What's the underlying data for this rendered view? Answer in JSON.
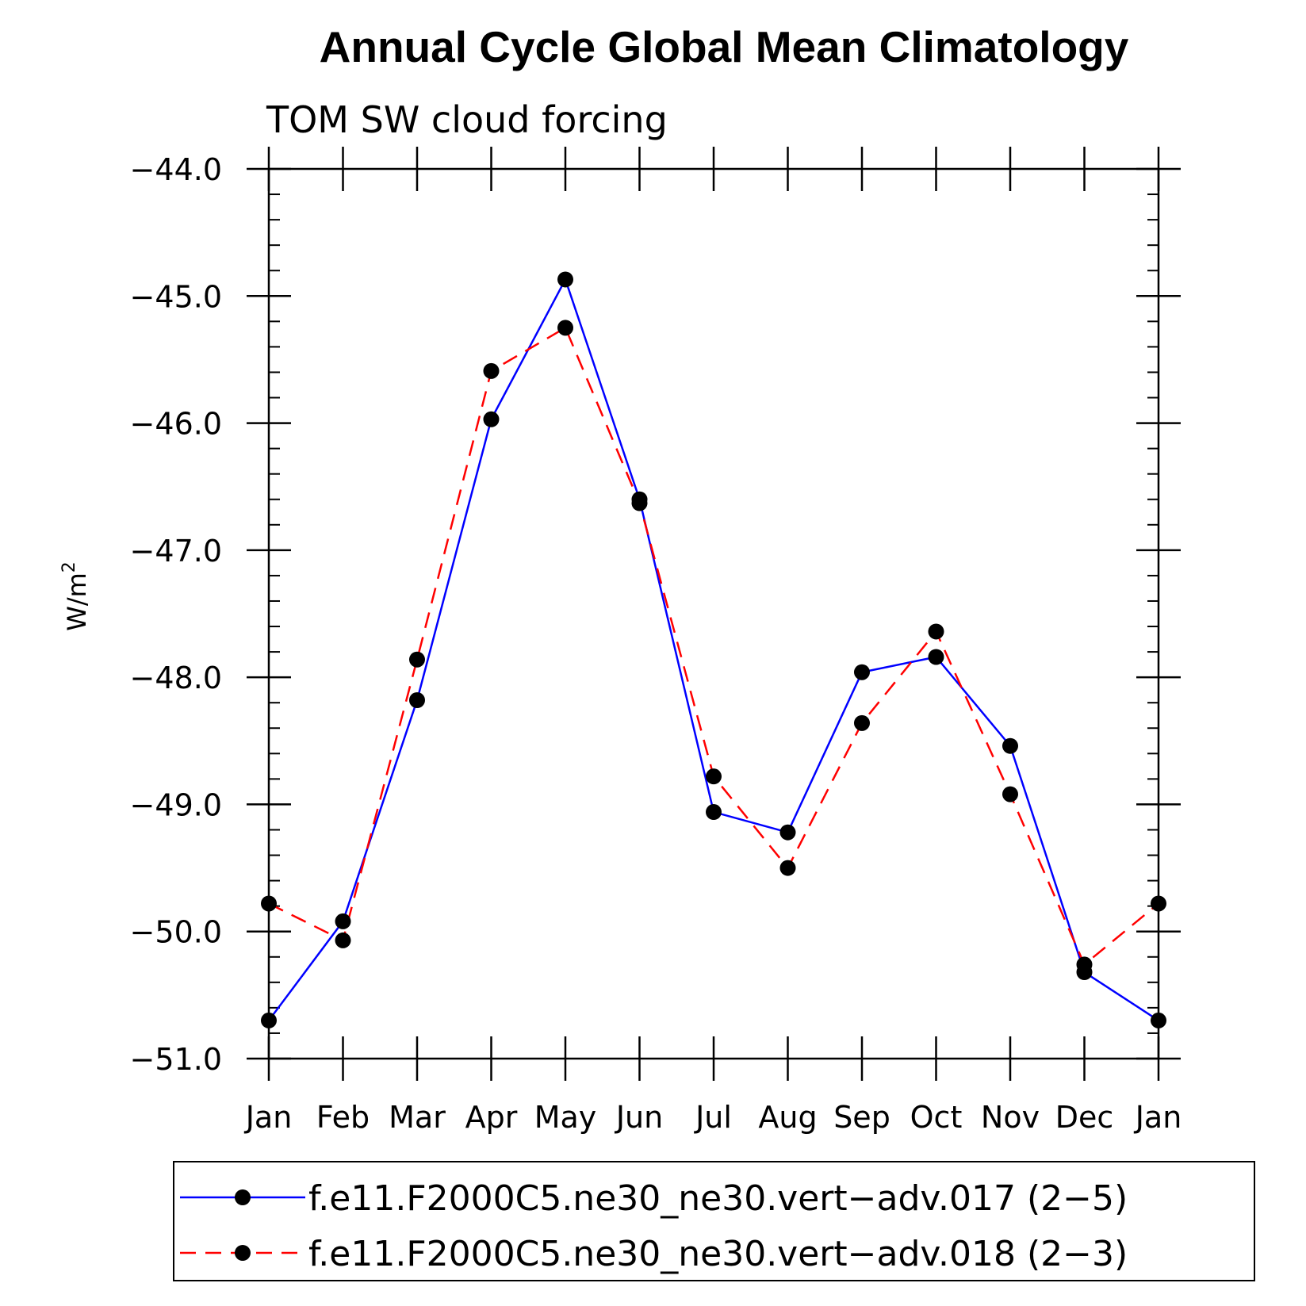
{
  "chart_data": {
    "type": "line",
    "title": "Annual Cycle Global Mean Climatology",
    "subtitle": "TOM SW cloud forcing",
    "ylabel_base": "W/m",
    "ylabel_sup": "2",
    "xlabel": "",
    "ylim": [
      -51.0,
      -44.0
    ],
    "yticks": [
      -44.0,
      -45.0,
      -46.0,
      -47.0,
      -48.0,
      -49.0,
      -50.0,
      -51.0
    ],
    "ytick_labels": [
      "−44.0",
      "−45.0",
      "−46.0",
      "−47.0",
      "−48.0",
      "−49.0",
      "−50.0",
      "−51.0"
    ],
    "categories": [
      "Jan",
      "Feb",
      "Mar",
      "Apr",
      "May",
      "Jun",
      "Jul",
      "Aug",
      "Sep",
      "Oct",
      "Nov",
      "Dec",
      "Jan"
    ],
    "series": [
      {
        "name": "f.e11.F2000C5.ne30_ne30.vert−adv.017 (2−5)",
        "color": "#0000ff",
        "dash": "solid",
        "values": [
          -50.7,
          -49.92,
          -48.18,
          -45.97,
          -44.87,
          -46.6,
          -49.06,
          -49.22,
          -47.96,
          -47.84,
          -48.54,
          -50.32,
          -50.7
        ]
      },
      {
        "name": "f.e11.F2000C5.ne30_ne30.vert−adv.018 (2−3)",
        "color": "#ff0000",
        "dash": "dashed",
        "values": [
          -49.78,
          -50.07,
          -47.86,
          -45.59,
          -45.25,
          -46.63,
          -48.78,
          -49.5,
          -48.36,
          -47.64,
          -48.92,
          -50.26,
          -49.78
        ]
      }
    ]
  }
}
